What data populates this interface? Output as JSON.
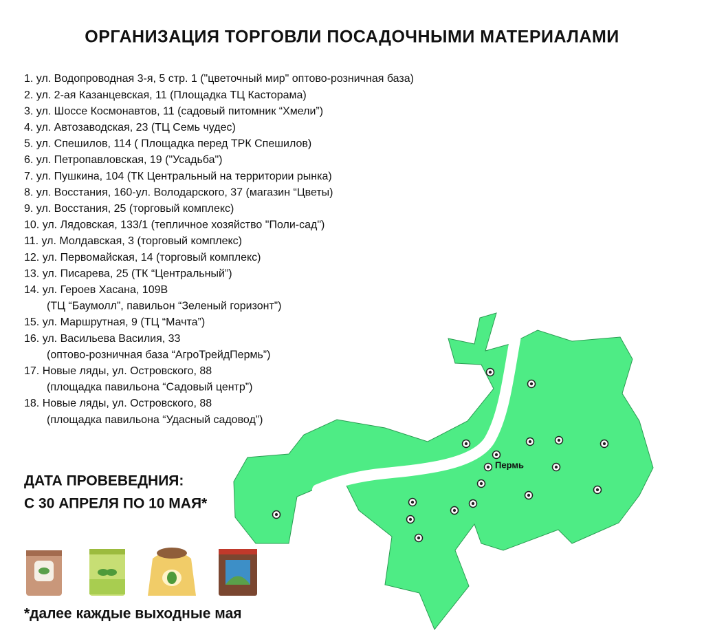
{
  "header": {
    "title": "ОРГАНИЗАЦИЯ ТОРГОВЛИ ПОСАДОЧНЫМИ МАТЕРИАЛАМИ"
  },
  "items": [
    {
      "text": "1. ул. Водопроводная 3-я, 5 стр. 1 (\"цветочный мир\" оптово-розничная база)"
    },
    {
      "text": "2. ул. 2-ая Казанцевская, 11 (Площадка ТЦ Касторама)"
    },
    {
      "text": "3. ул. Шоссе Космонавтов, 11 (садовый питомник “Хмели”)"
    },
    {
      "text": "4. ул. Автозаводская, 23 (ТЦ Семь чудес)"
    },
    {
      "text": "5. ул. Спешилов, 114 ( Площадка перед ТРК Спешилов)"
    },
    {
      "text": "6. ул. Петропавловская, 19 (\"Усадьба\")"
    },
    {
      "text": "7. ул. Пушкина, 104 (ТК Центральный на территории рынка)"
    },
    {
      "text": "8. ул. Восстания, 160-ул. Володарского,  37 (магазин “Цветы)"
    },
    {
      "text": "9. ул. Восстания, 25 (торговый комплекс)"
    },
    {
      "text": "10. ул. Лядовская, 133/1 (тепличное хозяйство \"Поли-сад\")"
    },
    {
      "text": "11. ул. Молдавская, 3 (торговый комплекс)"
    },
    {
      "text": "12. ул. Первомайская, 14 (торговый комплекс)"
    },
    {
      "text": "13. ул. Писарева, 25 (ТК “Центральный”)"
    },
    {
      "text": "14. ул. Героев Хасана, 109В",
      "detail": "(ТЦ “Баумолл”, павильон “Зеленый горизонт”)"
    },
    {
      "text": "15. ул. Маршрутная, 9 (ТЦ “Мачта”)"
    },
    {
      "text": "16. ул. Васильева Василия, 33",
      "detail": "(оптово-розничная база “АгроТрейдПермь”)"
    },
    {
      "text": "17. Новые ляды, ул. Островского, 88",
      "detail": "(площадка павильона “Садовый центр”)"
    },
    {
      "text": "18. Новые ляды, ул. Островского, 88",
      "detail": "(площадка павильона “Удасный садовод”)"
    }
  ],
  "dates": {
    "heading": "ДАТА ПРОВЕВЕДНИЯ:",
    "period": "С 30 АПРЕЛЯ ПО 10 МАЯ*"
  },
  "map": {
    "city": "Пермь"
  },
  "footnote": "*далее каждые выходные мая"
}
